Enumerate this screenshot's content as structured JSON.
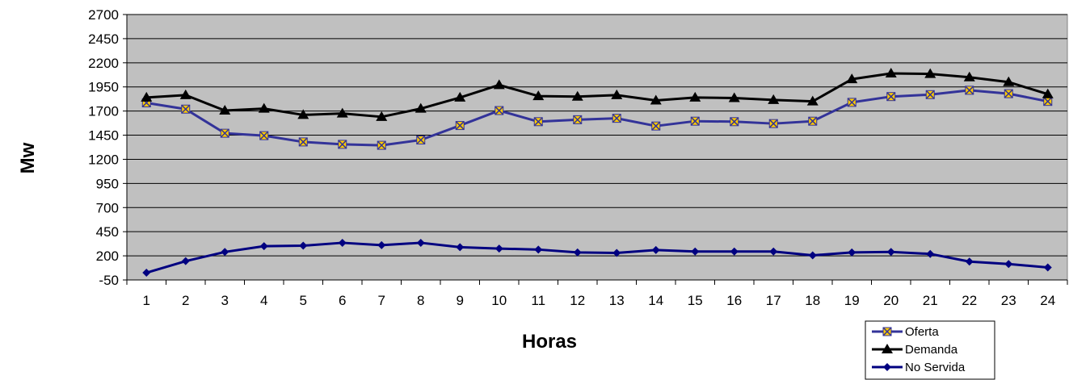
{
  "chart_data": {
    "type": "line",
    "title": "",
    "xlabel": "Horas",
    "ylabel": "Mw",
    "ylim": [
      -50,
      2700
    ],
    "yticks": [
      -50,
      200,
      450,
      700,
      950,
      1200,
      1450,
      1700,
      1950,
      2200,
      2450,
      2700
    ],
    "x": [
      1,
      2,
      3,
      4,
      5,
      6,
      7,
      8,
      9,
      10,
      11,
      12,
      13,
      14,
      15,
      16,
      17,
      18,
      19,
      20,
      21,
      22,
      23,
      24
    ],
    "grid": true,
    "legend_position": "bottom-right",
    "plot_background": "#c0c0c0",
    "series": [
      {
        "name": "Oferta",
        "color": "#333399",
        "marker": "square-x",
        "marker_color": "#ffcc00",
        "values": [
          1785,
          1720,
          1470,
          1445,
          1380,
          1355,
          1345,
          1400,
          1550,
          1705,
          1590,
          1610,
          1625,
          1545,
          1595,
          1590,
          1570,
          1595,
          1790,
          1850,
          1870,
          1915,
          1880,
          1800
        ]
      },
      {
        "name": "Demanda",
        "color": "#000000",
        "marker": "triangle",
        "marker_color": "#000000",
        "values": [
          1840,
          1865,
          1705,
          1725,
          1660,
          1675,
          1640,
          1725,
          1840,
          1970,
          1855,
          1850,
          1865,
          1810,
          1840,
          1835,
          1815,
          1800,
          2030,
          2090,
          2085,
          2050,
          2000,
          1875
        ]
      },
      {
        "name": "No Servida",
        "color": "#000080",
        "marker": "diamond",
        "marker_color": "#000080",
        "values": [
          25,
          145,
          240,
          300,
          305,
          335,
          310,
          335,
          290,
          275,
          265,
          235,
          230,
          260,
          245,
          245,
          245,
          205,
          235,
          240,
          220,
          140,
          115,
          80
        ]
      }
    ]
  }
}
